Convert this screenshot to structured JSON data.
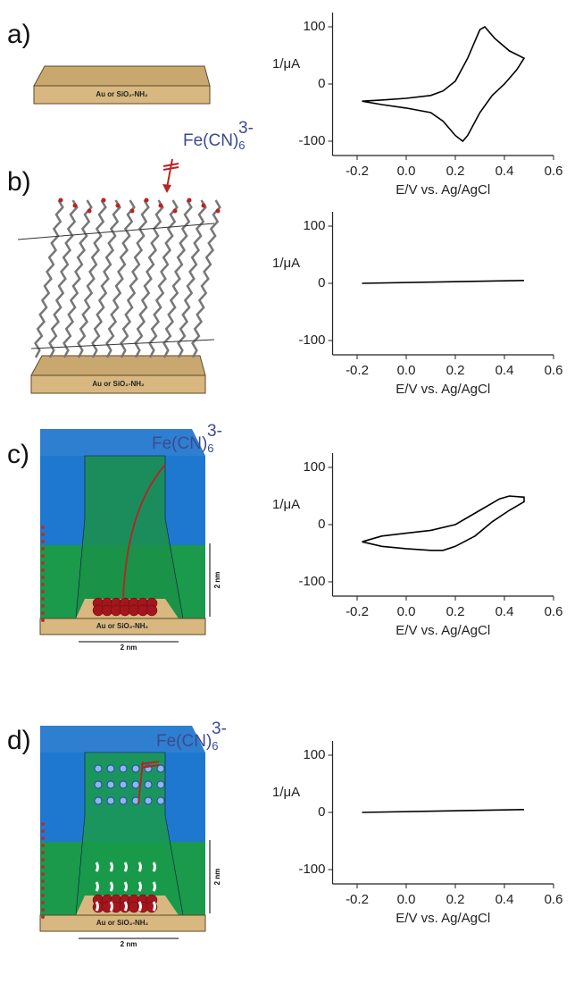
{
  "panels": [
    {
      "label": "a)",
      "substrate": "Au or SiO₂-NH₂"
    },
    {
      "label": "b)",
      "substrate": "Au or SiO₂-NH₂",
      "probe": {
        "formula": "Fe(CN)",
        "sub": "6",
        "sup": "3-"
      }
    },
    {
      "label": "c)",
      "substrate": "Au or SiO₂-NH₂",
      "probe": {
        "formula": "Fe(CN)",
        "sub": "6",
        "sup": "3-"
      },
      "height": "2 nm",
      "width": "2 nm"
    },
    {
      "label": "d)",
      "substrate": "Au or SiO₂-NH₂",
      "probe": {
        "formula": "Fe(CN)",
        "sub": "6",
        "sup": "3-"
      },
      "height": "2 nm",
      "width": "2 nm"
    }
  ],
  "chart_data": [
    {
      "type": "line",
      "x_label": "E/V vs. Ag/AgCl",
      "y_label": "1/μA",
      "color": "#000000",
      "xlim": [
        -0.3,
        0.6
      ],
      "ylim": [
        -125,
        125
      ],
      "xticks": [
        -0.2,
        {
          "value": 0,
          "label": "0.0"
        },
        0.2,
        0.4,
        0.6
      ],
      "yticks": [
        -100,
        0,
        100
      ],
      "x": [
        -0.18,
        -0.1,
        0,
        0.1,
        0.15,
        0.2,
        0.25,
        0.3,
        0.32,
        0.36,
        0.42,
        0.48,
        0.45,
        0.4,
        0.35,
        0.3,
        0.25,
        0.23,
        0.2,
        0.15,
        0.1,
        0,
        -0.1,
        -0.18
      ],
      "values": [
        -30,
        -28,
        -25,
        -20,
        -12,
        5,
        45,
        95,
        100,
        80,
        58,
        45,
        25,
        0,
        -20,
        -50,
        -90,
        -100,
        -90,
        -65,
        -50,
        -42,
        -36,
        -30
      ]
    },
    {
      "type": "line",
      "x_label": "E/V vs. Ag/AgCl",
      "y_label": "1/μA",
      "color": "#000000",
      "xlim": [
        -0.3,
        0.6
      ],
      "ylim": [
        -125,
        125
      ],
      "xticks": [
        -0.2,
        {
          "value": 0,
          "label": "0.0"
        },
        0.2,
        0.4,
        0.6
      ],
      "yticks": [
        -100,
        0,
        100
      ],
      "x": [
        -0.18,
        0.48
      ],
      "values": [
        0,
        5
      ]
    },
    {
      "type": "line",
      "x_label": "E/V vs. Ag/AgCl",
      "y_label": "1/μA",
      "color": "#000000",
      "xlim": [
        -0.3,
        0.6
      ],
      "ylim": [
        -125,
        125
      ],
      "xticks": [
        -0.2,
        {
          "value": 0,
          "label": "0.0"
        },
        0.2,
        0.4,
        0.6
      ],
      "yticks": [
        -100,
        0,
        100
      ],
      "x": [
        -0.18,
        -0.1,
        0,
        0.1,
        0.2,
        0.3,
        0.38,
        0.42,
        0.48,
        0.48,
        0.42,
        0.35,
        0.28,
        0.2,
        0.15,
        0.1,
        0,
        -0.1,
        -0.18
      ],
      "values": [
        -30,
        -20,
        -15,
        -10,
        0,
        25,
        45,
        50,
        48,
        40,
        25,
        5,
        -20,
        -38,
        -45,
        -45,
        -42,
        -38,
        -30
      ]
    },
    {
      "type": "line",
      "x_label": "E/V vs. Ag/AgCl",
      "y_label": "1/μA",
      "color": "#000000",
      "xlim": [
        -0.3,
        0.6
      ],
      "ylim": [
        -125,
        125
      ],
      "xticks": [
        -0.2,
        {
          "value": 0,
          "label": "0.0"
        },
        0.2,
        0.4,
        0.6
      ],
      "yticks": [
        -100,
        0,
        100
      ],
      "x": [
        -0.18,
        0.48
      ],
      "values": [
        0,
        5
      ]
    }
  ]
}
